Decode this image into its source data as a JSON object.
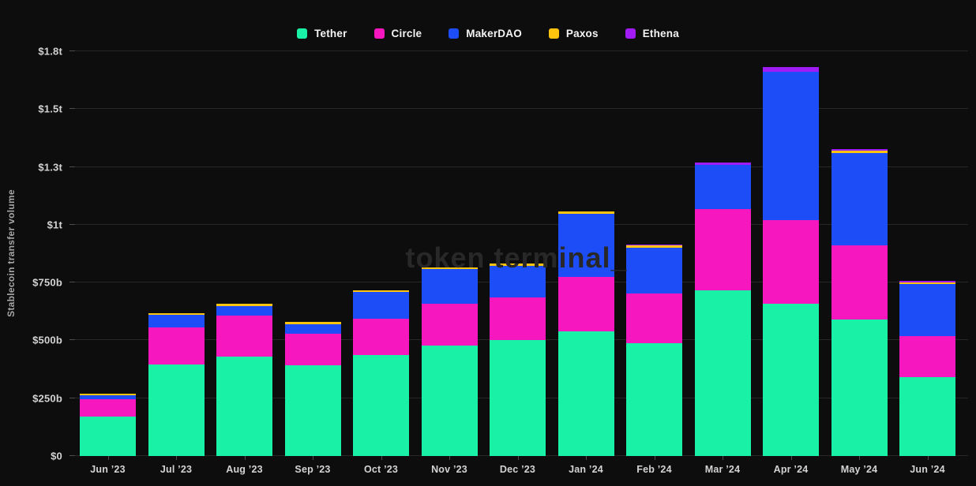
{
  "watermark": {
    "text": "token terminal_"
  },
  "chart_data": {
    "type": "bar",
    "stacked": true,
    "title": "",
    "xlabel": "",
    "ylabel": "Stablecoin transfer volume",
    "unit": "USD (b = billions, t = trillions)",
    "grid": "horizontal",
    "legend_position": "top-center",
    "ylim": [
      0,
      1750
    ],
    "categories": [
      "Jun ’23",
      "Jul ’23",
      "Aug ’23",
      "Sep ’23",
      "Oct ’23",
      "Nov ’23",
      "Dec ’23",
      "Jan ’24",
      "Feb ’24",
      "Mar ’24",
      "Apr ’24",
      "May ’24",
      "Jun ’24"
    ],
    "y_ticks": [
      {
        "value": 0,
        "label": "$0"
      },
      {
        "value": 250,
        "label": "$250b"
      },
      {
        "value": 500,
        "label": "$500b"
      },
      {
        "value": 750,
        "label": "$750b"
      },
      {
        "value": 1000,
        "label": "$1t"
      },
      {
        "value": 1250,
        "label": "$1.3t"
      },
      {
        "value": 1500,
        "label": "$1.5t"
      },
      {
        "value": 1750,
        "label": "$1.8t"
      }
    ],
    "series": [
      {
        "name": "Tether",
        "color": "#19F2A6",
        "values": [
          170,
          397,
          431,
          392,
          435,
          478,
          503,
          538,
          489,
          717,
          660,
          589,
          340
        ]
      },
      {
        "name": "Circle",
        "color": "#F617BF",
        "values": [
          77,
          158,
          177,
          137,
          160,
          179,
          183,
          237,
          213,
          352,
          361,
          322,
          177
        ]
      },
      {
        "name": "MakerDAO",
        "color": "#1C4DF7",
        "values": [
          15,
          55,
          41,
          42,
          116,
          153,
          135,
          272,
          199,
          189,
          642,
          399,
          228
        ]
      },
      {
        "name": "Paxos",
        "color": "#FFC40D",
        "values": [
          8,
          8,
          8,
          10,
          7,
          7,
          10,
          11,
          9,
          0,
          0,
          9,
          7
        ]
      },
      {
        "name": "Ethena",
        "color": "#A11BF5",
        "values": [
          0,
          0,
          0,
          0,
          0,
          0,
          0,
          0,
          5,
          12,
          19,
          7,
          6
        ]
      }
    ],
    "totals": [
      270,
      618,
      657,
      581,
      718,
      817,
      831,
      1058,
      915,
      1270,
      1682,
      1326,
      758
    ]
  }
}
